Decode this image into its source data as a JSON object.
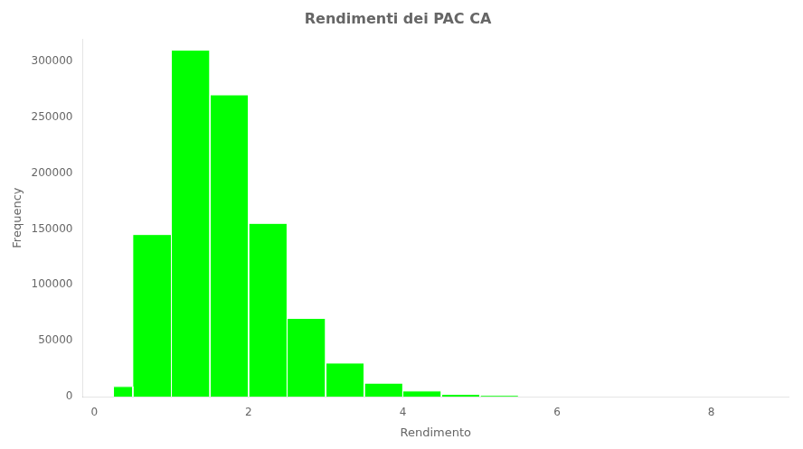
{
  "chart_data": {
    "type": "histogram",
    "title": "Rendimenti dei PAC CA",
    "xlabel": "Rendimento",
    "ylabel": "Frequency",
    "bins": [
      0.25,
      0.5,
      1.0,
      1.5,
      2.0,
      2.5,
      3.0,
      3.5,
      4.0,
      4.5,
      5.0,
      5.5
    ],
    "values": [
      9000,
      145000,
      310000,
      270000,
      155000,
      70000,
      30000,
      12000,
      5000,
      2000,
      1000
    ],
    "color": "#00FF00",
    "xlim": [
      -0.15,
      9.0
    ],
    "xticks": [
      0,
      2,
      4,
      6,
      8
    ],
    "ylim": [
      0,
      320000
    ],
    "yticks": [
      0,
      50000,
      100000,
      150000,
      200000,
      250000,
      300000
    ],
    "grid": false
  }
}
